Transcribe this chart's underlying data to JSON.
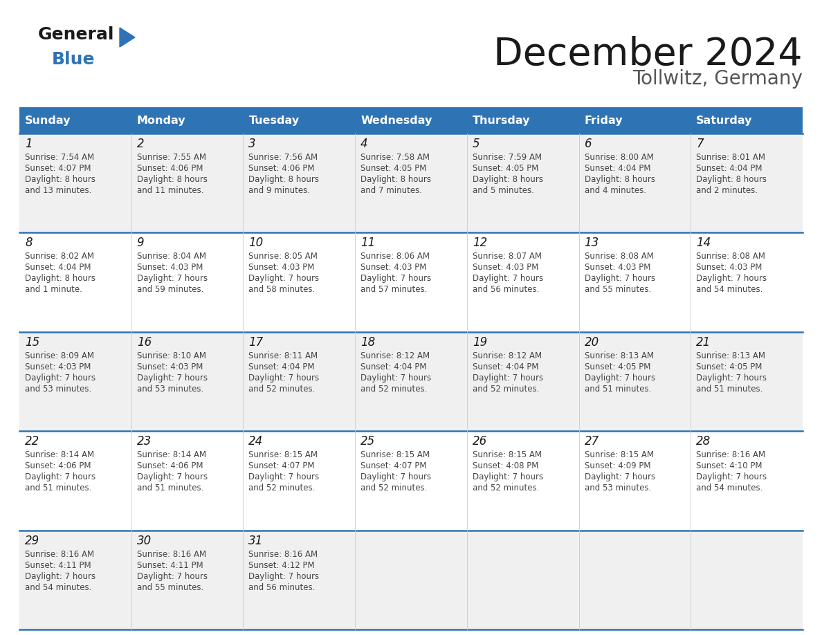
{
  "title": "December 2024",
  "subtitle": "Tollwitz, Germany",
  "days_of_week": [
    "Sunday",
    "Monday",
    "Tuesday",
    "Wednesday",
    "Thursday",
    "Friday",
    "Saturday"
  ],
  "header_bg": "#2E74B5",
  "header_text": "#FFFFFF",
  "row_bg_odd": "#F0F0F0",
  "row_bg_even": "#FFFFFF",
  "cell_text_color": "#444444",
  "day_num_color": "#1A1A1A",
  "title_color": "#1A1A1A",
  "subtitle_color": "#555555",
  "border_color": "#2E74B5",
  "logo_general_color": "#1A1A1A",
  "logo_blue_color": "#2E74B5",
  "calendar_data": [
    [
      {
        "day": 1,
        "sunrise": "7:54 AM",
        "sunset": "4:07 PM",
        "daylight": "8 hours and 13 minutes"
      },
      {
        "day": 2,
        "sunrise": "7:55 AM",
        "sunset": "4:06 PM",
        "daylight": "8 hours and 11 minutes"
      },
      {
        "day": 3,
        "sunrise": "7:56 AM",
        "sunset": "4:06 PM",
        "daylight": "8 hours and 9 minutes"
      },
      {
        "day": 4,
        "sunrise": "7:58 AM",
        "sunset": "4:05 PM",
        "daylight": "8 hours and 7 minutes"
      },
      {
        "day": 5,
        "sunrise": "7:59 AM",
        "sunset": "4:05 PM",
        "daylight": "8 hours and 5 minutes"
      },
      {
        "day": 6,
        "sunrise": "8:00 AM",
        "sunset": "4:04 PM",
        "daylight": "8 hours and 4 minutes"
      },
      {
        "day": 7,
        "sunrise": "8:01 AM",
        "sunset": "4:04 PM",
        "daylight": "8 hours and 2 minutes"
      }
    ],
    [
      {
        "day": 8,
        "sunrise": "8:02 AM",
        "sunset": "4:04 PM",
        "daylight": "8 hours and 1 minute"
      },
      {
        "day": 9,
        "sunrise": "8:04 AM",
        "sunset": "4:03 PM",
        "daylight": "7 hours and 59 minutes"
      },
      {
        "day": 10,
        "sunrise": "8:05 AM",
        "sunset": "4:03 PM",
        "daylight": "7 hours and 58 minutes"
      },
      {
        "day": 11,
        "sunrise": "8:06 AM",
        "sunset": "4:03 PM",
        "daylight": "7 hours and 57 minutes"
      },
      {
        "day": 12,
        "sunrise": "8:07 AM",
        "sunset": "4:03 PM",
        "daylight": "7 hours and 56 minutes"
      },
      {
        "day": 13,
        "sunrise": "8:08 AM",
        "sunset": "4:03 PM",
        "daylight": "7 hours and 55 minutes"
      },
      {
        "day": 14,
        "sunrise": "8:08 AM",
        "sunset": "4:03 PM",
        "daylight": "7 hours and 54 minutes"
      }
    ],
    [
      {
        "day": 15,
        "sunrise": "8:09 AM",
        "sunset": "4:03 PM",
        "daylight": "7 hours and 53 minutes"
      },
      {
        "day": 16,
        "sunrise": "8:10 AM",
        "sunset": "4:03 PM",
        "daylight": "7 hours and 53 minutes"
      },
      {
        "day": 17,
        "sunrise": "8:11 AM",
        "sunset": "4:04 PM",
        "daylight": "7 hours and 52 minutes"
      },
      {
        "day": 18,
        "sunrise": "8:12 AM",
        "sunset": "4:04 PM",
        "daylight": "7 hours and 52 minutes"
      },
      {
        "day": 19,
        "sunrise": "8:12 AM",
        "sunset": "4:04 PM",
        "daylight": "7 hours and 52 minutes"
      },
      {
        "day": 20,
        "sunrise": "8:13 AM",
        "sunset": "4:05 PM",
        "daylight": "7 hours and 51 minutes"
      },
      {
        "day": 21,
        "sunrise": "8:13 AM",
        "sunset": "4:05 PM",
        "daylight": "7 hours and 51 minutes"
      }
    ],
    [
      {
        "day": 22,
        "sunrise": "8:14 AM",
        "sunset": "4:06 PM",
        "daylight": "7 hours and 51 minutes"
      },
      {
        "day": 23,
        "sunrise": "8:14 AM",
        "sunset": "4:06 PM",
        "daylight": "7 hours and 51 minutes"
      },
      {
        "day": 24,
        "sunrise": "8:15 AM",
        "sunset": "4:07 PM",
        "daylight": "7 hours and 52 minutes"
      },
      {
        "day": 25,
        "sunrise": "8:15 AM",
        "sunset": "4:07 PM",
        "daylight": "7 hours and 52 minutes"
      },
      {
        "day": 26,
        "sunrise": "8:15 AM",
        "sunset": "4:08 PM",
        "daylight": "7 hours and 52 minutes"
      },
      {
        "day": 27,
        "sunrise": "8:15 AM",
        "sunset": "4:09 PM",
        "daylight": "7 hours and 53 minutes"
      },
      {
        "day": 28,
        "sunrise": "8:16 AM",
        "sunset": "4:10 PM",
        "daylight": "7 hours and 54 minutes"
      }
    ],
    [
      {
        "day": 29,
        "sunrise": "8:16 AM",
        "sunset": "4:11 PM",
        "daylight": "7 hours and 54 minutes"
      },
      {
        "day": 30,
        "sunrise": "8:16 AM",
        "sunset": "4:11 PM",
        "daylight": "7 hours and 55 minutes"
      },
      {
        "day": 31,
        "sunrise": "8:16 AM",
        "sunset": "4:12 PM",
        "daylight": "7 hours and 56 minutes"
      },
      null,
      null,
      null,
      null
    ]
  ]
}
